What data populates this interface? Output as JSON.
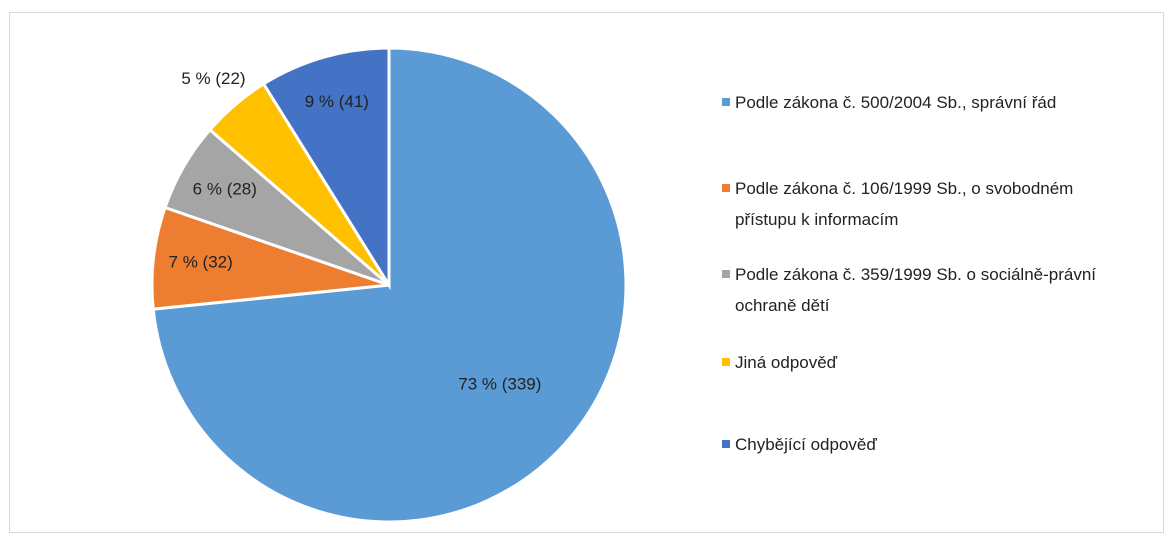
{
  "chart_data": {
    "type": "pie",
    "categories": [
      "Podle zákona č. 500/2004 Sb., správní řád",
      "Podle zákona č. 106/1999 Sb., o svobodném přístupu k informacím",
      "Podle zákona č. 359/1999 Sb. o sociálně-právní ochraně dětí",
      "Jiná odpověď",
      "Chybějící odpověď"
    ],
    "values": [
      339,
      32,
      28,
      22,
      41
    ],
    "value_labels": [
      "73 % (339)",
      "7 % (32)",
      "6 % (28)",
      "5 % (22)",
      "9 % (41)"
    ],
    "colors": [
      "#5b9bd5",
      "#ed7d31",
      "#a5a5a5",
      "#ffc000",
      "#4472c4"
    ],
    "legend": "right"
  }
}
